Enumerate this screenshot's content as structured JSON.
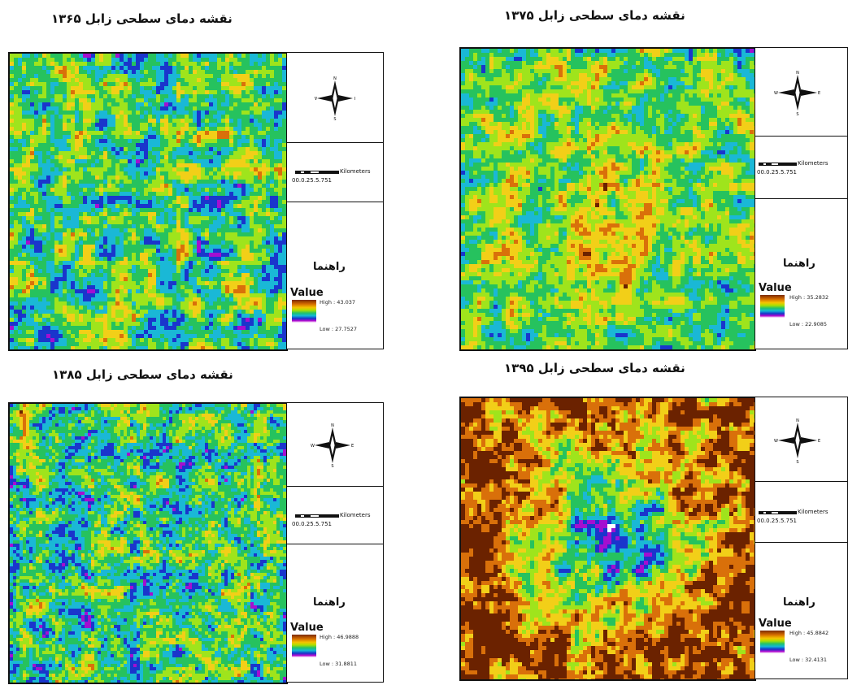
{
  "panels": [
    {
      "id": "p1365",
      "title": "نقشه دمای سطحی زابل ۱۳۶۵",
      "legend_heading": "راهنما",
      "value_label": "Value",
      "high": "High : 43.037",
      "low": "Low : 27.7527",
      "scale_units": "Kilometers",
      "scale_numbers": "00.0.25.5.751",
      "palette": "mixed"
    },
    {
      "id": "p1375",
      "title": "نقشه دمای سطحی زابل ۱۳۷۵",
      "legend_heading": "راهنما",
      "value_label": "Value",
      "high": "High : 35.2832",
      "low": "Low : 22.9085",
      "scale_units": "Kilometers",
      "scale_numbers": "00.0.25.5.751",
      "palette": "warm"
    },
    {
      "id": "p1385",
      "title": "نقشه دمای سطحی زابل ۱۳۸۵",
      "legend_heading": "راهنما",
      "value_label": "Value",
      "high": "High : 46.9888",
      "low": "Low : 31.8811",
      "scale_units": "Kilometers",
      "scale_numbers": "00.0.25.5.751",
      "palette": "grainy"
    },
    {
      "id": "p1395",
      "title": "نقشه دمای سطحی زابل ۱۳۹۵",
      "legend_heading": "راهنما",
      "value_label": "Value",
      "high": "High : 45.8842",
      "low": "Low : 32.4131",
      "scale_units": "Kilometers",
      "scale_numbers": "00.0.25.5.751",
      "palette": "coolcenter"
    }
  ],
  "compass": {
    "n": "N",
    "s": "S",
    "e": "E",
    "w": "W"
  },
  "colors": {
    "dark_brown": "#6b2200",
    "orange": "#d9700a",
    "yellow": "#f2cf18",
    "lime": "#9fe41c",
    "green": "#26c25e",
    "cyan": "#1ab8d6",
    "blue": "#1a35cc",
    "purple": "#a40fd0",
    "white": "#ffffff"
  }
}
